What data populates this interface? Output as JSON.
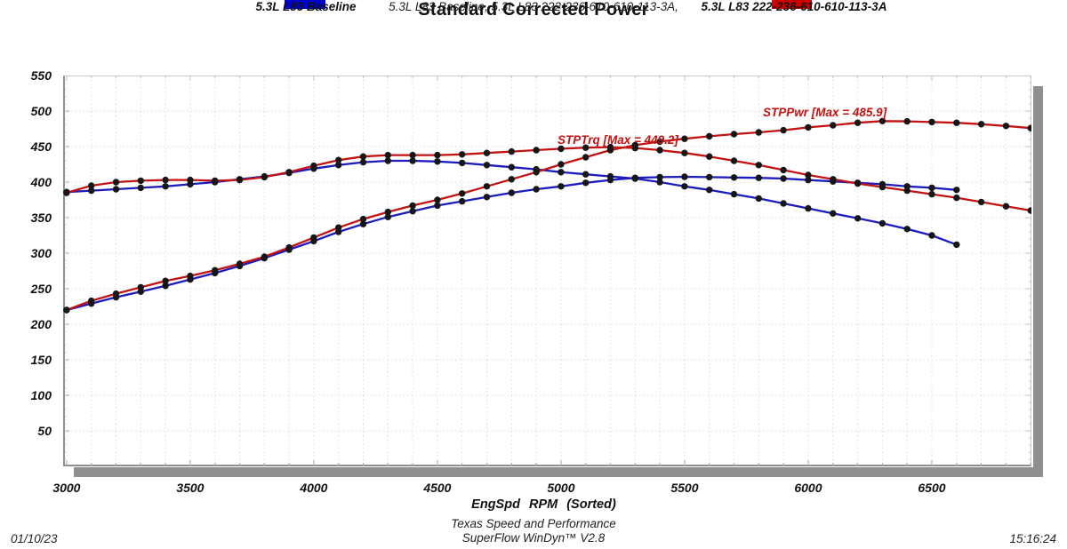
{
  "chart_data": {
    "type": "line",
    "title": "Standard Corrected Power",
    "subtitle": "5.3L L83 Baseline, 5.3L L83 222-236-610-610-113-3A,",
    "xlabel": "EngSpd  RPM   (Sorted)",
    "ylabel": "",
    "xlim": [
      2986,
      6903
    ],
    "ylim": [
      0,
      550
    ],
    "xticks": [
      3000,
      3500,
      4000,
      4500,
      5000,
      5500,
      6000,
      6500
    ],
    "yticks": [
      50,
      100,
      150,
      200,
      250,
      300,
      350,
      400,
      450,
      500,
      550
    ],
    "x_minor_step": 100,
    "y_minor_step": 10,
    "grid": "dotted",
    "legend_position": "top",
    "legend": [
      {
        "label": "5.3L L83 Baseline",
        "color": "#0000cc"
      },
      {
        "label": "5.3L L83 222-236-610-610-113-3A",
        "color": "#cc0000"
      }
    ],
    "annotations": [
      {
        "id": "stptrq-max",
        "text": "STPTrq [Max = 449.2]",
        "color": "#c41212"
      },
      {
        "id": "stppwr-max",
        "text": "STPPwr [Max = 485.9]",
        "color": "#c41212"
      }
    ],
    "marker_color": "#161616",
    "series": [
      {
        "id": "baseline-torque",
        "name": "STPTrq 5.3L L83 Baseline",
        "color": "#1c1cbe",
        "x_start": 3000,
        "x_step": 100,
        "values": [
          386,
          388,
          390,
          392,
          394,
          397,
          400,
          404,
          408,
          413,
          419,
          424,
          428,
          430,
          430,
          429,
          427,
          424,
          421,
          418,
          414,
          411,
          408,
          405,
          400,
          394,
          389,
          383,
          377,
          370,
          363,
          356,
          349,
          342,
          334,
          325,
          312
        ]
      },
      {
        "id": "baseline-power",
        "name": "STPPwr 5.3L L83 Baseline",
        "color": "#1c1cbe",
        "x_start": 3000,
        "x_step": 100,
        "values": [
          220,
          229,
          238,
          246,
          254,
          263,
          272,
          282,
          293,
          305,
          317,
          330,
          341,
          351,
          359,
          367,
          373,
          379,
          385,
          390,
          394,
          399,
          403,
          406,
          407,
          407.5,
          407,
          406.5,
          406,
          405,
          403,
          401,
          399,
          397,
          394,
          392,
          389
        ]
      },
      {
        "id": "cam-torque",
        "name": "STPTrq 5.3L L83 222-236-610-610-113-3A",
        "color": "#c41212",
        "x_start": 3000,
        "x_step": 100,
        "values": [
          385,
          395,
          400,
          402,
          403,
          403,
          402,
          403,
          407,
          414,
          423,
          431,
          436,
          438,
          438,
          438,
          439,
          441,
          443,
          445,
          447,
          448.5,
          449.2,
          448,
          445,
          441,
          436,
          430,
          424,
          417,
          410,
          404,
          398,
          393,
          388,
          383,
          378,
          372,
          366,
          360
        ]
      },
      {
        "id": "cam-power",
        "name": "STPPwr 5.3L L83 222-236-610-610-113-3A",
        "color": "#c41212",
        "x_start": 3000,
        "x_step": 100,
        "values": [
          220,
          233,
          243,
          252,
          261,
          268,
          276,
          285,
          295,
          308,
          322,
          336,
          348,
          358,
          367,
          375,
          384,
          394,
          404,
          414,
          425,
          435,
          445,
          452,
          457,
          461,
          464.5,
          467.5,
          470,
          473,
          477,
          480,
          483.5,
          485.9,
          485.5,
          484.5,
          483.5,
          481.5,
          479,
          476
        ]
      }
    ]
  },
  "footer": {
    "company": "Texas Speed and Performance",
    "software": "SuperFlow WinDyn™ V2.8",
    "date": "01/10/23",
    "time": "15:16:24"
  }
}
